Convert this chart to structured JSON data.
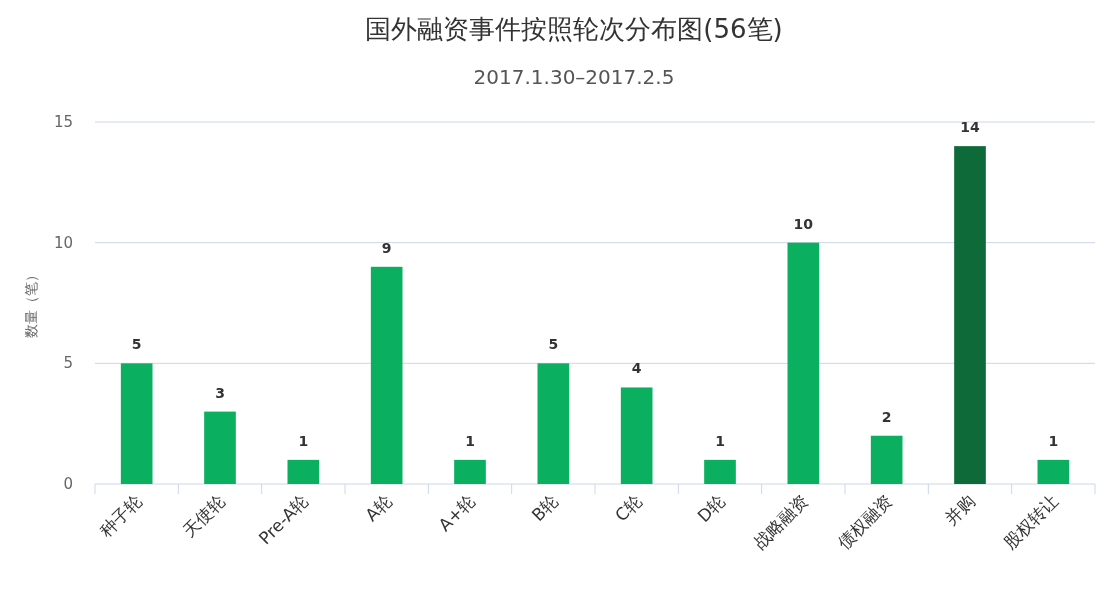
{
  "chart_data": {
    "type": "bar",
    "title": "国外融资事件按照轮次分布图(56笔)",
    "subtitle": "2017.1.30–2017.2.5",
    "ylabel": "数量（笔）",
    "categories": [
      "种子轮",
      "天使轮",
      "Pre-A轮",
      "A轮",
      "A+轮",
      "B轮",
      "C轮",
      "D轮",
      "战略融资",
      "债权融资",
      "并购",
      "股权转让"
    ],
    "values": [
      5,
      3,
      1,
      9,
      1,
      5,
      4,
      1,
      10,
      2,
      14,
      1
    ],
    "colors": [
      "#0aaf5f",
      "#0aaf5f",
      "#0aaf5f",
      "#0aaf5f",
      "#0aaf5f",
      "#0aaf5f",
      "#0aaf5f",
      "#0aaf5f",
      "#0aaf5f",
      "#0aaf5f",
      "#0e6b39",
      "#0aaf5f"
    ],
    "ylim": [
      0,
      15
    ],
    "yticks": [
      0,
      5,
      10,
      15
    ],
    "grid": "y",
    "data_labels": true
  }
}
